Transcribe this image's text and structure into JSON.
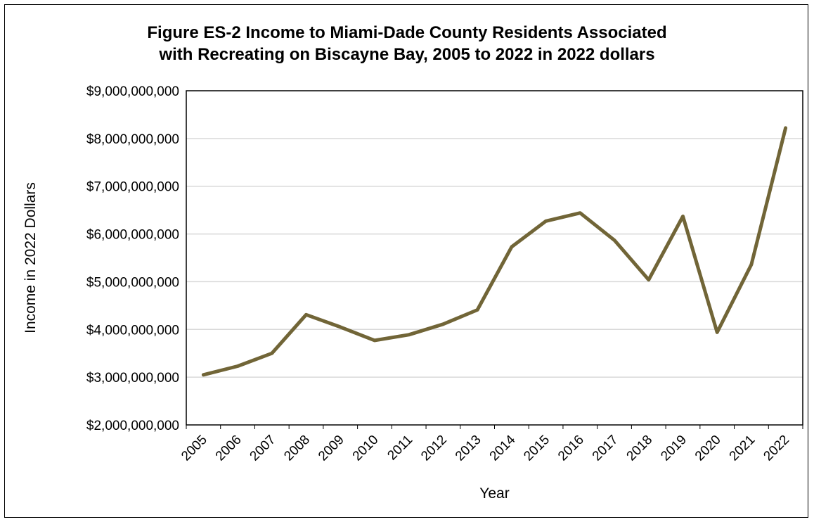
{
  "chart_data": {
    "type": "line",
    "title_line1": "Figure ES-2 Income to Miami-Dade County Residents Associated",
    "title_line2": "with Recreating on Biscayne Bay, 2005 to 2022 in 2022 dollars",
    "xlabel": "Year",
    "ylabel": "Income in 2022 Dollars",
    "ylim": [
      2000000000,
      9000000000
    ],
    "yticks": [
      2000000000,
      3000000000,
      4000000000,
      5000000000,
      6000000000,
      7000000000,
      8000000000,
      9000000000
    ],
    "ytick_labels": [
      "$2,000,000,000",
      "$3,000,000,000",
      "$4,000,000,000",
      "$5,000,000,000",
      "$6,000,000,000",
      "$7,000,000,000",
      "$8,000,000,000",
      "$9,000,000,000"
    ],
    "grid": true,
    "categories": [
      "2005",
      "2006",
      "2007",
      "2008",
      "2009",
      "2010",
      "2011",
      "2012",
      "2013",
      "2014",
      "2015",
      "2016",
      "2017",
      "2018",
      "2019",
      "2020",
      "2021",
      "2022"
    ],
    "series": [
      {
        "values": [
          3050000000,
          3230000000,
          3500000000,
          4310000000,
          4050000000,
          3770000000,
          3890000000,
          4110000000,
          4410000000,
          5730000000,
          6270000000,
          6440000000,
          5870000000,
          5040000000,
          6370000000,
          3940000000,
          5360000000,
          8220000000
        ],
        "color": "#716537"
      }
    ]
  }
}
